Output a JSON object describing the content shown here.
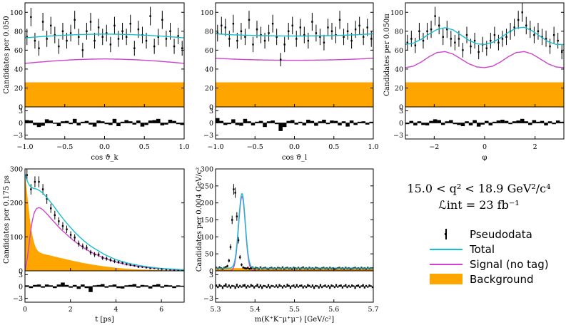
{
  "chart_data": [
    {
      "type": "scatter",
      "id": "cosk",
      "xlabel": "cos ϑ_k",
      "ylabel": "Candidates per 0.050",
      "xlim": [
        -1,
        1
      ],
      "ylim": [
        0,
        110
      ],
      "xticks": [
        -1.0,
        -0.5,
        0.0,
        0.5,
        1.0
      ],
      "xtick_labels": [
        "−1.0",
        "−0.5",
        "0.0",
        "0.5",
        "1.0"
      ],
      "yticks": [
        0,
        20,
        40,
        60,
        80,
        100
      ],
      "x": [
        -0.975,
        -0.925,
        -0.875,
        -0.825,
        -0.775,
        -0.725,
        -0.675,
        -0.625,
        -0.575,
        -0.525,
        -0.475,
        -0.425,
        -0.375,
        -0.325,
        -0.275,
        -0.225,
        -0.175,
        -0.125,
        -0.075,
        -0.025,
        0.025,
        0.075,
        0.125,
        0.175,
        0.225,
        0.275,
        0.325,
        0.375,
        0.425,
        0.475,
        0.525,
        0.575,
        0.625,
        0.675,
        0.725,
        0.775,
        0.825,
        0.875,
        0.925,
        0.975
      ],
      "pseudodata": [
        74,
        95,
        70,
        62,
        90,
        72,
        86,
        76,
        64,
        80,
        70,
        78,
        92,
        74,
        60,
        80,
        90,
        70,
        84,
        74,
        78,
        66,
        86,
        72,
        80,
        74,
        88,
        62,
        82,
        76,
        70,
        96,
        64,
        74,
        92,
        72,
        80,
        64,
        75,
        62
      ],
      "total": [
        73.0,
        73.7,
        74.3,
        74.9,
        75.4,
        75.8,
        76.2,
        76.5,
        76.7,
        76.9,
        77.0,
        76.9,
        76.7,
        76.5,
        76.2,
        75.8,
        75.4,
        74.9,
        74.3,
        73.7,
        73.0
      ],
      "signal": [
        46.0,
        46.8,
        47.5,
        48.2,
        48.8,
        49.3,
        49.8,
        50.1,
        50.4,
        50.6,
        50.7,
        50.6,
        50.4,
        50.1,
        49.8,
        49.3,
        48.8,
        48.2,
        47.5,
        46.8,
        46.0
      ],
      "background": 26,
      "pulls": [
        0.7,
        0.6,
        -0.5,
        -1.0,
        -0.7,
        0.9,
        0.6,
        -0.2,
        -0.8,
        0.4,
        0.5,
        -0.3,
        1.0,
        -0.6,
        0.3,
        0.5,
        -0.4,
        -0.9,
        0.6,
        0.4,
        -0.3,
        -0.5,
        1.0,
        -0.8,
        0.3,
        0.7,
        0.4,
        -0.4,
        0.6,
        -0.9,
        -0.5,
        0.6,
        0.7,
        1.0,
        -0.6,
        -0.4,
        0.8,
        0.5,
        -0.3,
        -0.5
      ],
      "pull_yticks": [
        -3,
        0,
        3
      ]
    },
    {
      "type": "scatter",
      "id": "cosl",
      "xlabel": "cos ϑ_l",
      "ylabel": "",
      "xlim": [
        -1,
        1
      ],
      "ylim": [
        0,
        110
      ],
      "xticks": [
        -1.0,
        -0.5,
        0.0,
        0.5,
        1.0
      ],
      "xtick_labels": [
        "−1.0",
        "−0.5",
        "0.0",
        "0.5",
        "1.0"
      ],
      "yticks": [
        0,
        20,
        40,
        60,
        80,
        100
      ],
      "x": [
        -0.975,
        -0.925,
        -0.875,
        -0.825,
        -0.775,
        -0.725,
        -0.675,
        -0.625,
        -0.575,
        -0.525,
        -0.475,
        -0.425,
        -0.375,
        -0.325,
        -0.275,
        -0.225,
        -0.175,
        -0.125,
        -0.075,
        -0.025,
        0.025,
        0.075,
        0.125,
        0.175,
        0.225,
        0.275,
        0.325,
        0.375,
        0.425,
        0.475,
        0.525,
        0.575,
        0.625,
        0.675,
        0.725,
        0.775,
        0.825,
        0.875,
        0.925,
        0.975
      ],
      "pseudodata": [
        78,
        86,
        84,
        72,
        88,
        70,
        80,
        74,
        92,
        66,
        82,
        76,
        70,
        78,
        88,
        74,
        50,
        66,
        80,
        86,
        72,
        84,
        76,
        70,
        90,
        78,
        74,
        68,
        84,
        80,
        76,
        92,
        74,
        80,
        70,
        82,
        86,
        74,
        84,
        72
      ],
      "total": [
        77.2,
        76.8,
        76.3,
        76.0,
        75.7,
        75.5,
        75.3,
        75.2,
        75.1,
        75.0,
        75.0,
        75.0,
        75.1,
        75.2,
        75.3,
        75.5,
        75.7,
        76.0,
        76.3,
        76.8,
        77.2
      ],
      "signal": [
        51.5,
        51.0,
        50.6,
        50.3,
        50.0,
        49.8,
        49.6,
        49.5,
        49.4,
        49.3,
        49.3,
        49.3,
        49.4,
        49.5,
        49.6,
        49.8,
        50.0,
        50.3,
        50.6,
        51.0,
        51.5
      ],
      "background": 26,
      "pulls": [
        1.2,
        0.5,
        -0.5,
        -0.3,
        0.9,
        -0.5,
        -0.7,
        1.0,
        0.4,
        -0.6,
        0.3,
        0.5,
        -1.0,
        0.4,
        0.6,
        -0.3,
        -2.0,
        -1.0,
        0.5,
        0.7,
        -0.4,
        0.3,
        -0.6,
        0.8,
        0.5,
        -0.7,
        0.4,
        0.8,
        -0.3,
        0.6,
        0.5,
        -0.6,
        0.4,
        -0.9,
        0.6,
        -0.5,
        0.3,
        0.4,
        -0.4,
        0.3
      ],
      "pull_yticks": [
        -3,
        0,
        3
      ]
    },
    {
      "type": "scatter",
      "id": "phi",
      "xlabel": "φ",
      "ylabel": "Candidates per 0.050π",
      "xlim": [
        -3.1416,
        3.1416
      ],
      "ylim": [
        0,
        110
      ],
      "xticks": [
        -2,
        0,
        2
      ],
      "xtick_labels": [
        "−2",
        "0",
        "2"
      ],
      "yticks": [
        0,
        20,
        40,
        60,
        80,
        100
      ],
      "x": [
        -3.063,
        -2.906,
        -2.749,
        -2.592,
        -2.435,
        -2.278,
        -2.121,
        -1.964,
        -1.806,
        -1.649,
        -1.492,
        -1.335,
        -1.178,
        -1.021,
        -0.864,
        -0.707,
        -0.55,
        -0.393,
        -0.236,
        -0.079,
        0.079,
        0.236,
        0.393,
        0.55,
        0.707,
        0.864,
        1.021,
        1.178,
        1.335,
        1.492,
        1.649,
        1.806,
        1.964,
        2.121,
        2.278,
        2.435,
        2.592,
        2.749,
        2.906,
        3.063
      ],
      "pseudodata": [
        68,
        72,
        65,
        80,
        70,
        80,
        82,
        96,
        86,
        74,
        82,
        72,
        68,
        72,
        60,
        76,
        64,
        70,
        58,
        66,
        62,
        70,
        76,
        68,
        72,
        74,
        80,
        84,
        92,
        100,
        86,
        82,
        76,
        80,
        74,
        72,
        64,
        76,
        70,
        58
      ],
      "total": [
        66.0,
        67.4,
        71.5,
        77.1,
        81.9,
        83.7,
        81.5,
        76.1,
        70.5,
        66.7,
        66.0,
        68.2,
        72.9,
        78.9,
        83.3,
        84.2,
        80.5,
        74.6,
        69.1,
        66.1,
        66.0
      ],
      "signal": [
        41.5,
        43.0,
        47.5,
        53.1,
        57.5,
        58.5,
        55.9,
        50.8,
        45.6,
        42.3,
        41.5,
        43.0,
        47.5,
        53.1,
        57.5,
        58.5,
        55.9,
        50.8,
        45.6,
        42.3,
        41.5
      ],
      "background": 26,
      "pulls": [
        -0.3,
        0.5,
        -0.6,
        0.4,
        -0.5,
        -0.6,
        0.5,
        0.9,
        0.7,
        -0.5,
        0.4,
        0.7,
        -0.3,
        -0.5,
        -0.8,
        0.4,
        -0.6,
        0.7,
        -0.9,
        -0.4,
        0.5,
        -0.6,
        0.3,
        0.6,
        0.8,
        0.5,
        -0.3,
        0.4,
        0.6,
        1.0,
        0.4,
        -0.5,
        0.7,
        0.3,
        0.5,
        -0.6,
        0.4,
        -0.3,
        0.6,
        0.3
      ],
      "pull_yticks": [
        -3,
        0,
        3
      ]
    },
    {
      "type": "scatter",
      "id": "time",
      "xlabel": "t [ps]",
      "ylabel": "Candidates per 0.175 ps",
      "xlim": [
        0,
        7
      ],
      "ylim": [
        0,
        300
      ],
      "xticks": [
        0,
        2,
        4,
        6
      ],
      "xtick_labels": [
        "0",
        "2",
        "4",
        "6"
      ],
      "yticks": [
        0,
        100,
        200,
        300
      ],
      "x": [
        0.0875,
        0.2625,
        0.4375,
        0.6125,
        0.7875,
        0.9625,
        1.1375,
        1.3125,
        1.4875,
        1.6625,
        1.8375,
        2.0125,
        2.1875,
        2.3625,
        2.5375,
        2.7125,
        2.8875,
        3.0625,
        3.2375,
        3.4125,
        3.5875,
        3.7625,
        3.9375,
        4.1125,
        4.2875,
        4.4625,
        4.6375,
        4.8125,
        4.9875,
        5.1625,
        5.3375,
        5.5125,
        5.6875,
        5.8625,
        6.0375,
        6.2125,
        6.3875,
        6.5625,
        6.7375,
        6.9125
      ],
      "pseudodata": [
        282,
        240,
        262,
        262,
        240,
        212,
        184,
        164,
        146,
        132,
        122,
        106,
        98,
        80,
        72,
        68,
        54,
        48,
        48,
        38,
        36,
        32,
        28,
        26,
        24,
        20,
        18,
        16,
        12,
        12,
        10,
        8,
        8,
        6,
        6,
        4,
        4,
        3,
        2,
        2
      ],
      "total": [
        [
          0,
          285
        ],
        [
          0.1,
          264
        ],
        [
          0.2,
          251
        ],
        [
          0.3,
          245
        ],
        [
          0.4,
          242
        ],
        [
          0.5,
          241
        ],
        [
          0.6,
          238
        ],
        [
          0.8,
          228
        ],
        [
          1.0,
          213
        ],
        [
          1.2,
          196
        ],
        [
          1.4,
          178
        ],
        [
          1.6,
          160
        ],
        [
          1.8,
          143
        ],
        [
          2.0,
          128
        ],
        [
          2.2,
          113
        ],
        [
          2.4,
          100
        ],
        [
          2.6,
          88
        ],
        [
          2.8,
          77
        ],
        [
          3.0,
          68
        ],
        [
          3.5,
          48
        ],
        [
          4.0,
          33
        ],
        [
          4.5,
          23
        ],
        [
          5.0,
          16
        ],
        [
          5.5,
          11
        ],
        [
          6.0,
          7
        ],
        [
          6.5,
          5
        ],
        [
          7.0,
          3
        ]
      ],
      "signal": [
        [
          0,
          0
        ],
        [
          0.1,
          35
        ],
        [
          0.2,
          90
        ],
        [
          0.3,
          140
        ],
        [
          0.4,
          170
        ],
        [
          0.5,
          183
        ],
        [
          0.6,
          186
        ],
        [
          0.7,
          184
        ],
        [
          0.8,
          179
        ],
        [
          1.0,
          165
        ],
        [
          1.2,
          150
        ],
        [
          1.4,
          135
        ],
        [
          1.6,
          121
        ],
        [
          1.8,
          109
        ],
        [
          2.0,
          97
        ],
        [
          2.2,
          86
        ],
        [
          2.4,
          76
        ],
        [
          2.6,
          67
        ],
        [
          2.8,
          59
        ],
        [
          3.0,
          52
        ],
        [
          3.5,
          37
        ],
        [
          4.0,
          26
        ],
        [
          4.5,
          18
        ],
        [
          5.0,
          13
        ],
        [
          5.5,
          9
        ],
        [
          6.0,
          6
        ],
        [
          6.5,
          4
        ],
        [
          7.0,
          2.5
        ]
      ],
      "background": [
        [
          0,
          285
        ],
        [
          0.1,
          225
        ],
        [
          0.2,
          160
        ],
        [
          0.3,
          112
        ],
        [
          0.4,
          82
        ],
        [
          0.5,
          65
        ],
        [
          0.6,
          56
        ],
        [
          0.8,
          50
        ],
        [
          1.0,
          47
        ],
        [
          1.5,
          39
        ],
        [
          2.0,
          31
        ],
        [
          2.5,
          24
        ],
        [
          3.0,
          18
        ],
        [
          3.5,
          13
        ],
        [
          4.0,
          9
        ],
        [
          4.5,
          6
        ],
        [
          5.0,
          4
        ],
        [
          5.5,
          3
        ],
        [
          6.0,
          2
        ],
        [
          7.0,
          1
        ]
      ],
      "pulls": [
        0.3,
        -0.4,
        0.4,
        0.5,
        -0.3,
        0.5,
        0.3,
        -0.4,
        0.5,
        1.0,
        0.4,
        -0.3,
        0.4,
        -0.6,
        0.5,
        -0.4,
        -1.4,
        0.3,
        0.4,
        0.6,
        -0.3,
        0.3,
        0.5,
        -0.4,
        -0.5,
        0.3,
        0.4,
        0.6,
        -0.3,
        0.4,
        0.3,
        -0.5,
        0.4,
        0.6,
        -0.3,
        0.4,
        0.3,
        -0.4,
        0.3,
        0.2
      ],
      "pull_yticks": [
        -3,
        0,
        3
      ]
    },
    {
      "type": "scatter",
      "id": "mass",
      "xlabel": "m(K⁺K⁻μ⁺μ⁻) [GeV/c²]",
      "ylabel": "Candidates per 0.004 GeV/c²",
      "xlim": [
        5.3,
        5.7
      ],
      "ylim": [
        0,
        300
      ],
      "xticks": [
        5.3,
        5.4,
        5.5,
        5.6,
        5.7
      ],
      "xtick_labels": [
        "5.3",
        "5.4",
        "5.5",
        "5.6",
        "5.7"
      ],
      "yticks": [
        0,
        50,
        100,
        150,
        200,
        250,
        300
      ],
      "mean": 5.367,
      "sigma": 0.0085,
      "peak_signal": 220,
      "background": 8,
      "pseudodata": [
        9,
        7,
        10,
        8,
        6,
        9,
        11,
        14,
        30,
        70,
        150,
        240,
        230,
        160,
        90,
        40,
        18,
        10,
        8,
        7,
        9,
        6,
        8,
        10,
        7,
        9,
        8,
        6,
        10,
        7,
        8,
        9,
        7,
        6,
        8,
        9,
        7,
        8,
        6,
        9,
        8,
        7,
        10,
        6,
        8,
        9,
        7,
        8,
        6,
        9,
        8,
        7,
        9,
        6,
        8,
        10,
        7,
        8,
        6,
        9,
        7,
        8,
        6,
        9,
        8,
        7,
        6,
        8,
        9,
        7,
        8,
        6,
        9,
        7,
        8,
        6,
        7,
        8,
        9,
        7,
        8,
        6,
        9,
        7,
        8,
        6,
        7,
        8,
        9,
        7,
        8,
        6,
        9,
        7,
        8,
        6,
        9,
        7,
        8,
        8
      ],
      "pulls": [
        0.5,
        -0.4,
        0.6,
        0.3,
        -0.6,
        0.4,
        0.8,
        -0.3,
        0.5,
        -0.5,
        0.4,
        0.3,
        -0.6,
        0.7,
        -0.4,
        0.4,
        -0.3,
        0.5,
        0.6,
        -0.5,
        0.4,
        -0.3,
        0.6,
        0.4,
        -0.5,
        0.3,
        0.7,
        -0.4,
        0.5,
        -0.6,
        0.4,
        0.3,
        -0.4,
        0.6,
        -0.5,
        0.4,
        0.3,
        -0.3,
        0.5,
        -0.4,
        0.6,
        0.3,
        -0.5,
        0.4,
        -0.3,
        0.7,
        0.4,
        -0.6,
        0.3,
        0.5,
        -0.4,
        0.6,
        -0.3,
        0.4,
        0.5,
        -0.5,
        0.3,
        -0.4,
        0.6,
        0.4,
        -0.3,
        0.5,
        -0.6,
        0.4,
        0.3,
        -0.5,
        0.6,
        -0.4,
        0.3,
        0.5,
        -0.3,
        0.4,
        -0.6,
        0.5,
        0.3,
        -0.4,
        0.6,
        -0.3,
        0.4,
        0.5,
        -0.5,
        0.3,
        0.6,
        -0.4,
        0.4,
        -0.3,
        0.5,
        0.3,
        -0.6,
        0.4,
        0.5,
        -0.4,
        0.3,
        0.6,
        -0.5,
        0.4,
        -0.3,
        0.5,
        0.3,
        -0.4
      ],
      "pull_yticks": [
        -3,
        0,
        3
      ]
    }
  ],
  "info": {
    "q2_range": "15.0 < q² < 18.9 GeV²/c⁴",
    "luminosity": "ℒint = 23 fb⁻¹"
  },
  "legend": [
    {
      "label": "Pseudodata",
      "kind": "data"
    },
    {
      "label": "Total",
      "kind": "total"
    },
    {
      "label": "Signal (no tag)",
      "kind": "signal"
    },
    {
      "label": "Background",
      "kind": "background"
    }
  ],
  "colors": {
    "total": "#17becf",
    "signal": "#cc44cc",
    "background": "#ffa500",
    "data": "#000000"
  }
}
